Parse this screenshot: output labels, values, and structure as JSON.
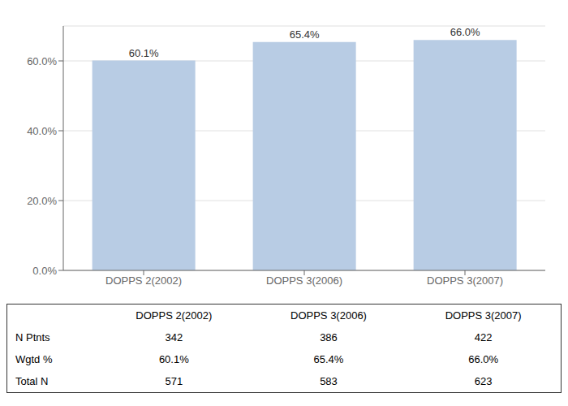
{
  "chart_data": {
    "type": "bar",
    "categories": [
      "DOPPS 2(2002)",
      "DOPPS 3(2006)",
      "DOPPS 3(2007)"
    ],
    "values": [
      60.1,
      65.4,
      66.0
    ],
    "value_labels": [
      "60.1%",
      "65.4%",
      "66.0%"
    ],
    "data_labels": true,
    "color": "#b8cce4",
    "ylim": [
      0,
      70
    ],
    "yticks": [
      {
        "value": 0,
        "label": "0.0%"
      },
      {
        "value": 20,
        "label": "20.0%"
      },
      {
        "value": 40,
        "label": "40.0%"
      },
      {
        "value": 60,
        "label": "60.0%"
      }
    ],
    "grid": true,
    "table": {
      "rows": [
        {
          "label": "N Ptnts",
          "values": [
            342,
            386,
            422
          ]
        },
        {
          "label": "Wgtd %",
          "values": [
            60.1,
            65.4,
            66.0
          ],
          "value_labels": [
            "60.1%",
            "65.4%",
            "66.0%"
          ]
        },
        {
          "label": "Total N",
          "values": [
            571,
            583,
            623
          ]
        }
      ]
    }
  }
}
